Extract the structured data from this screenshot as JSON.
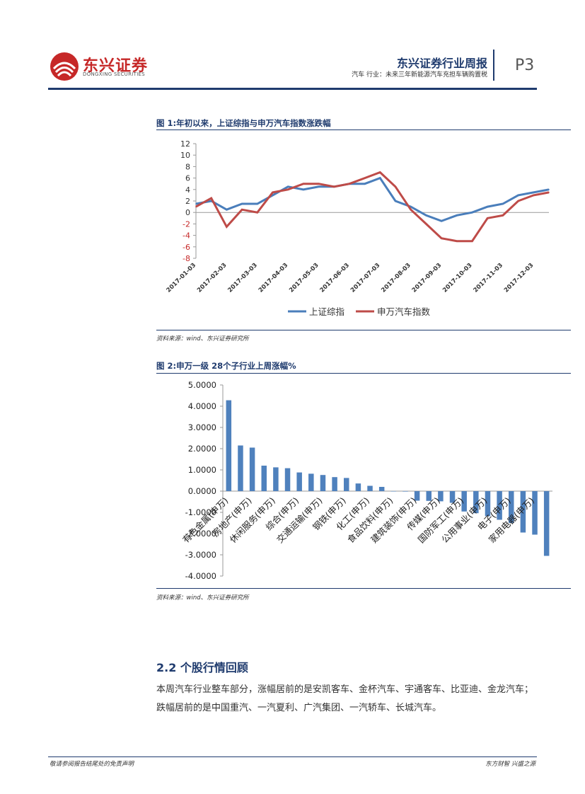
{
  "header": {
    "logo_cn": "东兴证券",
    "logo_en": "DONGXING SECURITIES",
    "title": "东兴证券行业周报",
    "subtitle": "汽车 行业：未来三年新能源汽车充担车辆购置税",
    "page": "P3"
  },
  "figure1": {
    "title": "图 1:年初以来，上证综指与申万汽车指数涨跌幅",
    "source": "资料来源：wind、东兴证券研究所"
  },
  "figure2": {
    "title": "图 2:申万一级 28个子行业上周涨幅%",
    "source": "资料来源：wind、东兴证券研究所"
  },
  "section": {
    "heading": "2.2 个股行情回顾",
    "paragraph": "本周汽车行业整车部分，涨幅居前的是安凯客车、金杯汽车、宇通客车、比亚迪、金龙汽车；跌幅居前的是中国重汽、一汽夏利、广汽集团、一汽轿车、长城汽车。"
  },
  "footer": {
    "left": "敬请参阅报告结尾处的免责声明",
    "right": "东方财智 兴盛之源"
  },
  "colors": {
    "brand_red": "#c62828",
    "navy": "#1f3b6e",
    "series_blue": "#4a7ebb",
    "series_red": "#be4b48",
    "bar_blue": "#4f81bd"
  },
  "chart_data": [
    {
      "type": "line",
      "x_ticks": [
        "2017-01-03",
        "2017-02-03",
        "2017-03-03",
        "2017-04-03",
        "2017-05-03",
        "2017-06-03",
        "2017-07-03",
        "2017-08-03",
        "2017-09-03",
        "2017-10-03",
        "2017-11-03",
        "2017-12-03"
      ],
      "ylim": [
        -8,
        12
      ],
      "y_ticks": [
        "12",
        "10",
        "8",
        "6",
        "4",
        "2",
        "0",
        "-2",
        "-4",
        "-6",
        "-8"
      ],
      "legend": "bottom",
      "series": [
        {
          "name": "上证综指",
          "color": "#4a7ebb",
          "x": [
            0,
            0.5,
            1,
            1.5,
            2,
            2.5,
            3,
            3.5,
            4,
            4.5,
            5,
            5.5,
            6,
            6.5,
            7,
            7.5,
            8,
            8.5,
            9,
            9.5,
            10,
            10.5,
            11,
            11.5
          ],
          "values": [
            1.5,
            2,
            0.5,
            1.5,
            1.5,
            3,
            4.5,
            4,
            4.5,
            4.5,
            5,
            5,
            6,
            2,
            1,
            -0.5,
            -1.5,
            -0.5,
            0,
            1,
            1.5,
            3,
            3.5,
            4
          ]
        },
        {
          "name": "申万汽车指数",
          "color": "#be4b48",
          "x": [
            0,
            0.5,
            1,
            1.5,
            2,
            2.5,
            3,
            3.5,
            4,
            4.5,
            5,
            5.5,
            6,
            6.5,
            7,
            7.5,
            8,
            8.5,
            9,
            9.5,
            10,
            10.5,
            11,
            11.5
          ],
          "values": [
            1,
            2.5,
            -2.5,
            0.5,
            0,
            3.5,
            4,
            5,
            5,
            4.5,
            5,
            6,
            7,
            4.5,
            0.5,
            -2,
            -4.5,
            -5,
            -5,
            -1,
            -0.5,
            2,
            3,
            3.5
          ]
        }
      ]
    },
    {
      "type": "bar",
      "ylim": [
        -4,
        5
      ],
      "y_ticks": [
        "5.0000",
        "4.0000",
        "3.0000",
        "2.0000",
        "1.0000",
        "0.0000",
        "-1.0000",
        "-2.0000",
        "-3.0000",
        "-4.0000"
      ],
      "categories": [
        "有色金属(申万)",
        "",
        "房地产(申万)",
        "",
        "休闲服务(申万)",
        "",
        "综合(申万)",
        "",
        "交通运输(申万)",
        "",
        "钢铁(申万)",
        "",
        "化工(申万)",
        "",
        "食品饮料(申万)",
        "",
        "建筑装饰(申万)",
        "",
        "传媒(申万)",
        "",
        "国防军工(申万)",
        "",
        "公用事业(申万)",
        "",
        "电子(申万)",
        "",
        "家用电器(申万)",
        ""
      ],
      "values": [
        4.28,
        2.15,
        2.05,
        1.2,
        1.12,
        1.08,
        0.88,
        0.82,
        0.76,
        0.66,
        0.62,
        0.36,
        0.25,
        0.2,
        0,
        -0.02,
        -0.45,
        -0.46,
        -0.48,
        -0.55,
        -0.96,
        -1.04,
        -1.18,
        -1.35,
        -1.5,
        -1.95,
        -2.05,
        -3.05
      ]
    }
  ]
}
